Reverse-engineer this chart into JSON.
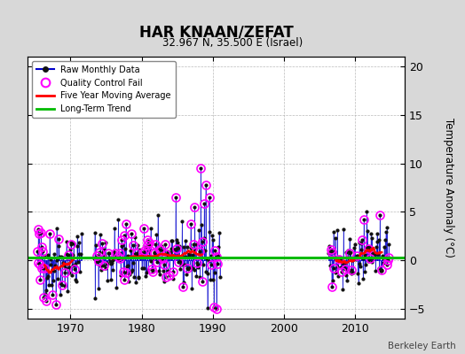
{
  "title": "HAR KNAAN/ZEFAT",
  "subtitle": "32.967 N, 35.500 E (Israel)",
  "ylabel": "Temperature Anomaly (°C)",
  "attribution": "Berkeley Earth",
  "ylim": [
    -6,
    21
  ],
  "yticks": [
    -5,
    0,
    5,
    10,
    15,
    20
  ],
  "xlim": [
    1964,
    2017
  ],
  "xticks": [
    1970,
    1980,
    1990,
    2000,
    2010
  ],
  "bg_color": "#d8d8d8",
  "plot_bg_color": "#ffffff",
  "raw_line_color": "#0000cc",
  "raw_dot_color": "#111111",
  "qc_fail_color": "#ff00ff",
  "moving_avg_color": "#ff0000",
  "trend_color": "#00bb00",
  "trend_value": 0.3,
  "seed": 42,
  "period1_start": 1965.3,
  "period1_end": 1971.5,
  "period2_start": 1973.3,
  "period2_end": 1991.0,
  "period3_start": 2006.3,
  "period3_end": 2014.8,
  "legend_loc": "upper left",
  "figsize": [
    5.24,
    4.0
  ],
  "dpi": 100
}
